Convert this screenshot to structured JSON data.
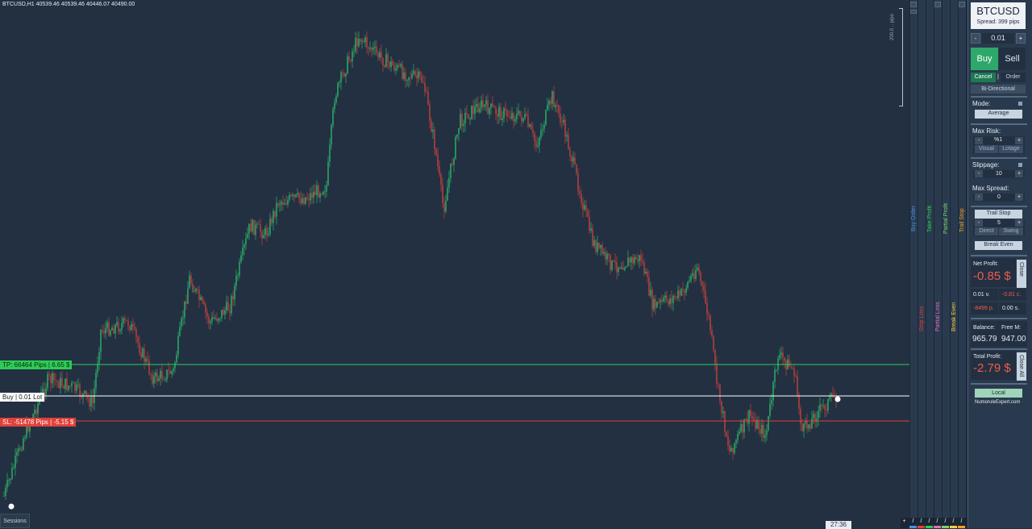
{
  "header": {
    "text": "BTCUSD,H1  40539.46 40539.46 40446.07 40490.00"
  },
  "levels": {
    "tp_label": "TP: 66464 Pips  |  6.65 $",
    "buy_label": "Buy  |  0.01 Lot",
    "sl_label": "SL: -51478 Pips  |  -5.15 $",
    "colors": {
      "tp": "#2ecc55",
      "buy": "#ffffff",
      "sl": "#e0403a"
    }
  },
  "chart_bottom": {
    "sessions_label": "Sessions",
    "timer": "27:36"
  },
  "scale": {
    "pips_text": "200.0 .. pips"
  },
  "tracks": [
    {
      "label": "Buy Order",
      "color": "#4a90e2"
    },
    {
      "label": "Stop Loss",
      "color": "#e0403a"
    },
    {
      "label": "Take Profit",
      "color": "#2ecc55"
    },
    {
      "label": "Partial Loss",
      "color": "#e070c0"
    },
    {
      "label": "Partial Profit",
      "color": "#7fd36a"
    },
    {
      "label": "Break Even",
      "color": "#f0d040"
    },
    {
      "label": "Trail Stop",
      "color": "#f0a020"
    }
  ],
  "strip": {
    "plus": "+",
    "slash": "/"
  },
  "panel": {
    "symbol": "BTCUSD",
    "spread": "Spread: 399 pips",
    "lot_minus": "-",
    "lot_value": "0.01",
    "lot_plus": "+",
    "buy": "Buy",
    "sell": "Sell",
    "cancel": "Cancel",
    "divider": "|",
    "order": "Order",
    "bidirectional": "Bi-Directional",
    "mode_label": "Mode:",
    "mode_value": "Average",
    "max_risk_label": "Max Risk:",
    "risk_minus": "-",
    "risk_value": "%1",
    "risk_plus": "+",
    "visual": "Visual",
    "lotage": "Lotage",
    "slippage_label": "Slippage:",
    "slip_minus": "-",
    "slip_value": "10",
    "slip_plus": "+",
    "max_spread_label": "Max Spread:",
    "spread_minus": "-",
    "spread_value": "0",
    "spread_plus": "+",
    "trail_stop": "Trail Stop",
    "trail_minus": "-",
    "trail_value": "5",
    "trail_plus": "+",
    "direct": "Direct",
    "swing": "Swing",
    "break_even": "Break Even",
    "net_profit_label": "Net Profit:",
    "net_profit_value": "-0.85 $",
    "close": "Close",
    "volume": "0.01 v.",
    "commission": "-0.81 c.",
    "pips": "-8499 p.",
    "swap": "0.00 s.",
    "balance_label": "Balance:",
    "free_margin_label": "Free M:",
    "balance_value": "965.79",
    "free_margin_value": "947.00",
    "total_profit_label": "Total Profit:",
    "total_profit_value": "-2.79 $",
    "close_all": "Close All",
    "local": "Local",
    "website": "NumoruleExpert.com"
  }
}
